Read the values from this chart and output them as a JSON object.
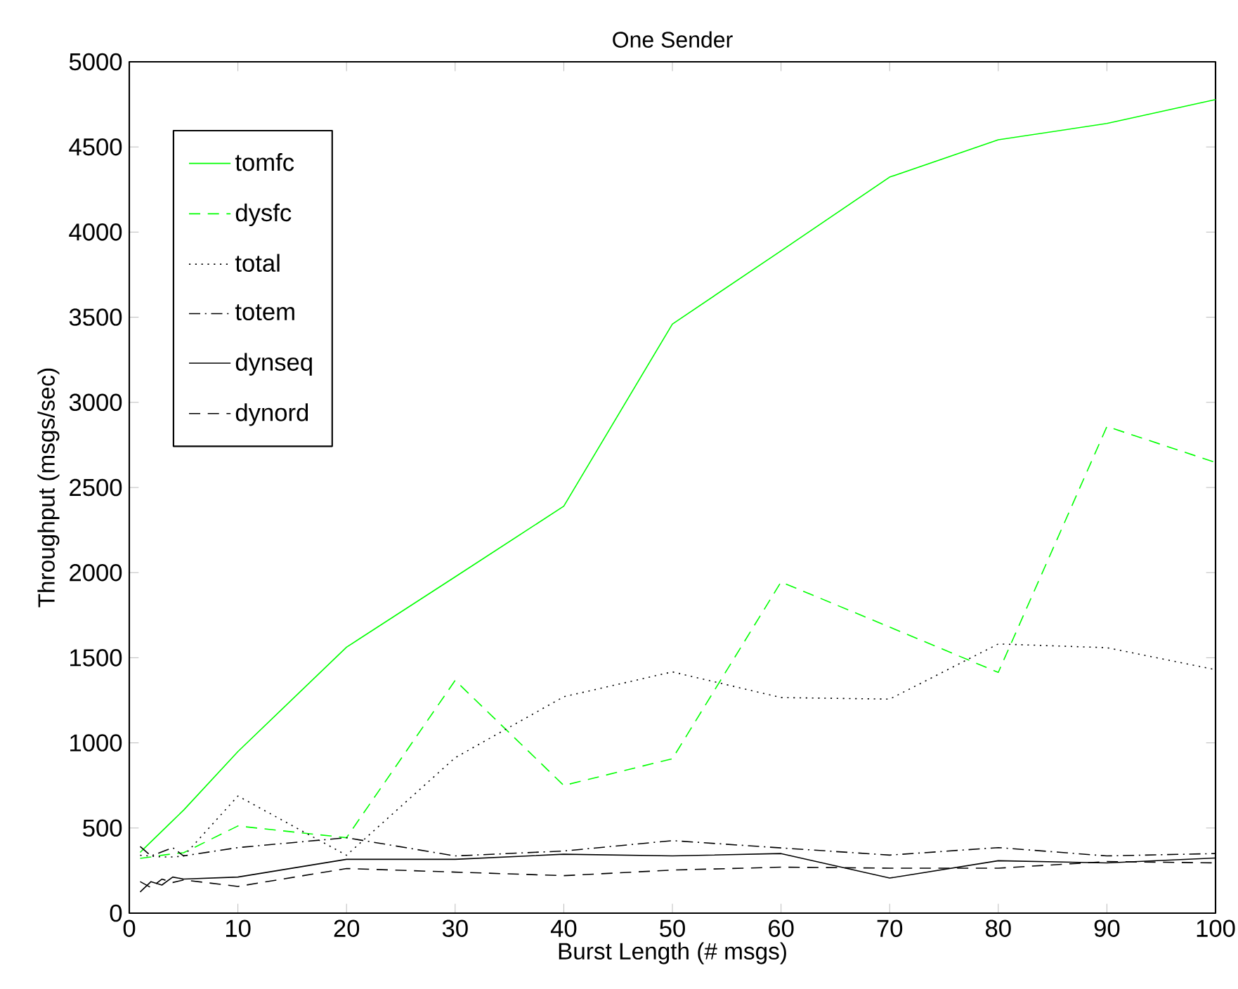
{
  "chart_data": {
    "type": "line",
    "title": "One Sender",
    "xlabel": "Burst Length (# msgs)",
    "ylabel": "Throughput (msgs/sec)",
    "x": [
      1,
      2,
      3,
      4,
      5,
      10,
      20,
      30,
      40,
      50,
      60,
      70,
      80,
      90,
      100
    ],
    "xlim": [
      0,
      100
    ],
    "xticks": [
      0,
      10,
      20,
      30,
      40,
      50,
      60,
      70,
      80,
      90,
      100
    ],
    "ylim": [
      0,
      5000
    ],
    "yticks": [
      0,
      500,
      1000,
      1500,
      2000,
      2500,
      3000,
      3500,
      4000,
      4500,
      5000
    ],
    "legend": "top left",
    "grid": false,
    "marker": "none",
    "series": [
      {
        "name": "tomfc",
        "color": "#00ff00",
        "line_style": "solid",
        "values": [
          357,
          419,
          481,
          543,
          605,
          949,
          1562,
          1975,
          2390,
          3460,
          3890,
          4323,
          4542,
          4638,
          4778
        ]
      },
      {
        "name": "dysfc",
        "color": "#00ff00",
        "line_style": "dashed",
        "values": [
          322,
          330,
          340,
          348,
          355,
          512,
          443,
          1367,
          750,
          907,
          1945,
          1680,
          1414,
          2858,
          2647
        ]
      },
      {
        "name": "total",
        "color": "#000000",
        "line_style": "dotted",
        "values": [
          340,
          335,
          330,
          330,
          335,
          688,
          340,
          913,
          1271,
          1417,
          1266,
          1257,
          1581,
          1559,
          1430
        ]
      },
      {
        "name": "totem",
        "color": "#000000",
        "line_style": "dashdot",
        "values": [
          391,
          336,
          360,
          385,
          336,
          385,
          443,
          336,
          365,
          426,
          383,
          341,
          385,
          336,
          350
        ]
      },
      {
        "name": "dynseq",
        "color": "#000000",
        "line_style": "solid",
        "values": [
          124,
          185,
          165,
          212,
          200,
          212,
          316,
          316,
          346,
          336,
          350,
          206,
          308,
          295,
          324
        ]
      },
      {
        "name": "dynord",
        "color": "#000000",
        "line_style": "dashed",
        "values": [
          185,
          150,
          200,
          180,
          195,
          157,
          262,
          241,
          220,
          253,
          270,
          264,
          264,
          303,
          295
        ]
      }
    ]
  }
}
